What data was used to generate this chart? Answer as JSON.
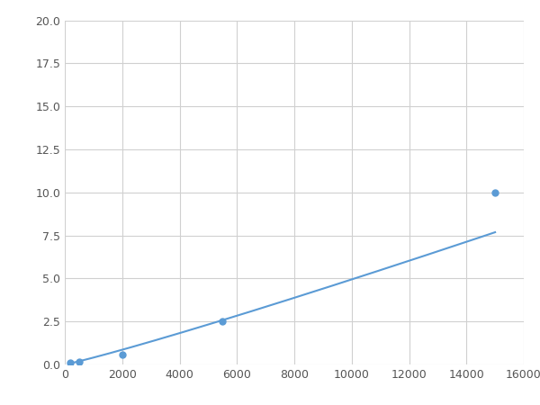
{
  "x_points": [
    200,
    500,
    2000,
    5500,
    15000
  ],
  "y_points": [
    0.1,
    0.15,
    0.6,
    2.5,
    10.0
  ],
  "line_color": "#5b9bd5",
  "marker_color": "#5b9bd5",
  "marker_size": 5,
  "line_width": 1.5,
  "xlim": [
    0,
    16000
  ],
  "ylim": [
    0,
    20
  ],
  "xticks": [
    0,
    2000,
    4000,
    6000,
    8000,
    10000,
    12000,
    14000,
    16000
  ],
  "yticks": [
    0.0,
    2.5,
    5.0,
    7.5,
    10.0,
    12.5,
    15.0,
    17.5,
    20.0
  ],
  "grid_color": "#d0d0d0",
  "grid_linewidth": 0.8,
  "background_color": "#ffffff",
  "figsize": [
    6.0,
    4.5
  ],
  "dpi": 100
}
